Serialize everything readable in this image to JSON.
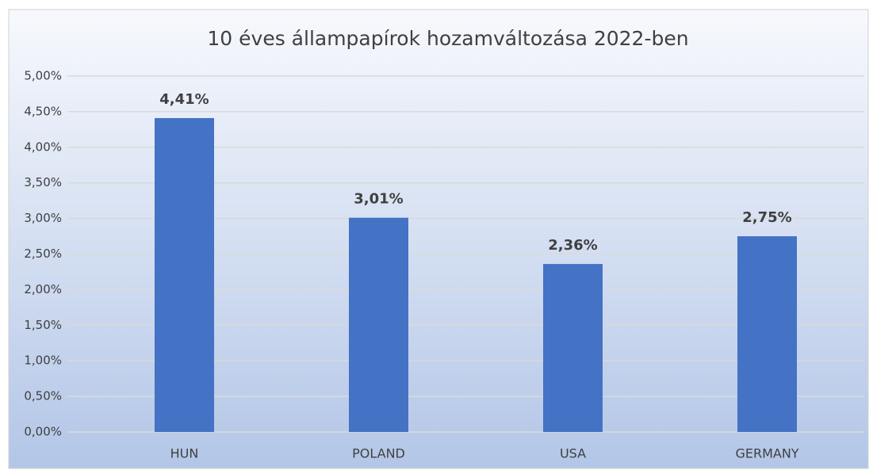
{
  "chart_data": {
    "type": "bar",
    "title": "10 éves állampapírok hozamváltozása 2022-ben",
    "categories": [
      "HUN",
      "POLAND",
      "USA",
      "GERMANY"
    ],
    "values": [
      4.41,
      3.01,
      2.36,
      2.75
    ],
    "value_labels": [
      "4,41%",
      "3,01%",
      "2,36%",
      "2,75%"
    ],
    "color": "#4472c4",
    "ylim": [
      0,
      5
    ],
    "yticks": [
      {
        "value": 0,
        "label": "0,00%"
      },
      {
        "value": 0.5,
        "label": "0,50%"
      },
      {
        "value": 1,
        "label": "1,00%"
      },
      {
        "value": 1.5,
        "label": "1,50%"
      },
      {
        "value": 2,
        "label": "2,00%"
      },
      {
        "value": 2.5,
        "label": "2,50%"
      },
      {
        "value": 3,
        "label": "3,00%"
      },
      {
        "value": 3.5,
        "label": "3,50%"
      },
      {
        "value": 4,
        "label": "4,00%"
      },
      {
        "value": 4.5,
        "label": "4,50%"
      },
      {
        "value": 5,
        "label": "5,00%"
      }
    ],
    "grid": true
  }
}
